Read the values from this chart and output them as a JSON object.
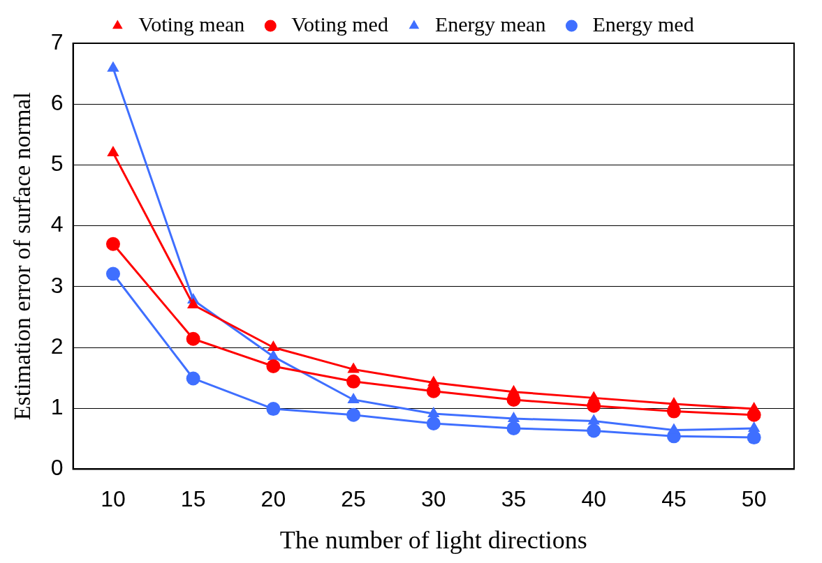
{
  "chart_data": {
    "type": "line",
    "xlabel": "The number of light directions",
    "ylabel": "Estimation error of surface normal",
    "categories": [
      "10",
      "15",
      "20",
      "25",
      "30",
      "35",
      "40",
      "45",
      "50"
    ],
    "series": [
      {
        "name": "Voting mean",
        "color": "#ff0000",
        "marker": "triangle",
        "values": [
          5.2,
          2.7,
          2.0,
          1.64,
          1.42,
          1.27,
          1.17,
          1.07,
          0.99
        ]
      },
      {
        "name": "Voting med",
        "color": "#ff0000",
        "marker": "circle",
        "values": [
          3.7,
          2.14,
          1.69,
          1.44,
          1.28,
          1.14,
          1.04,
          0.95,
          0.89
        ]
      },
      {
        "name": "Energy mean",
        "color": "#3f6fff",
        "marker": "triangle",
        "values": [
          6.59,
          2.78,
          1.85,
          1.14,
          0.91,
          0.83,
          0.79,
          0.64,
          0.67
        ]
      },
      {
        "name": "Energy med",
        "color": "#3f6fff",
        "marker": "circle",
        "values": [
          3.21,
          1.49,
          0.99,
          0.89,
          0.75,
          0.67,
          0.63,
          0.54,
          0.52
        ]
      }
    ],
    "ylim": [
      0,
      7
    ],
    "yticks": [
      0,
      1,
      2,
      3,
      4,
      5,
      6,
      7
    ],
    "grid": "y",
    "legend": "top",
    "line_style": "solid"
  }
}
